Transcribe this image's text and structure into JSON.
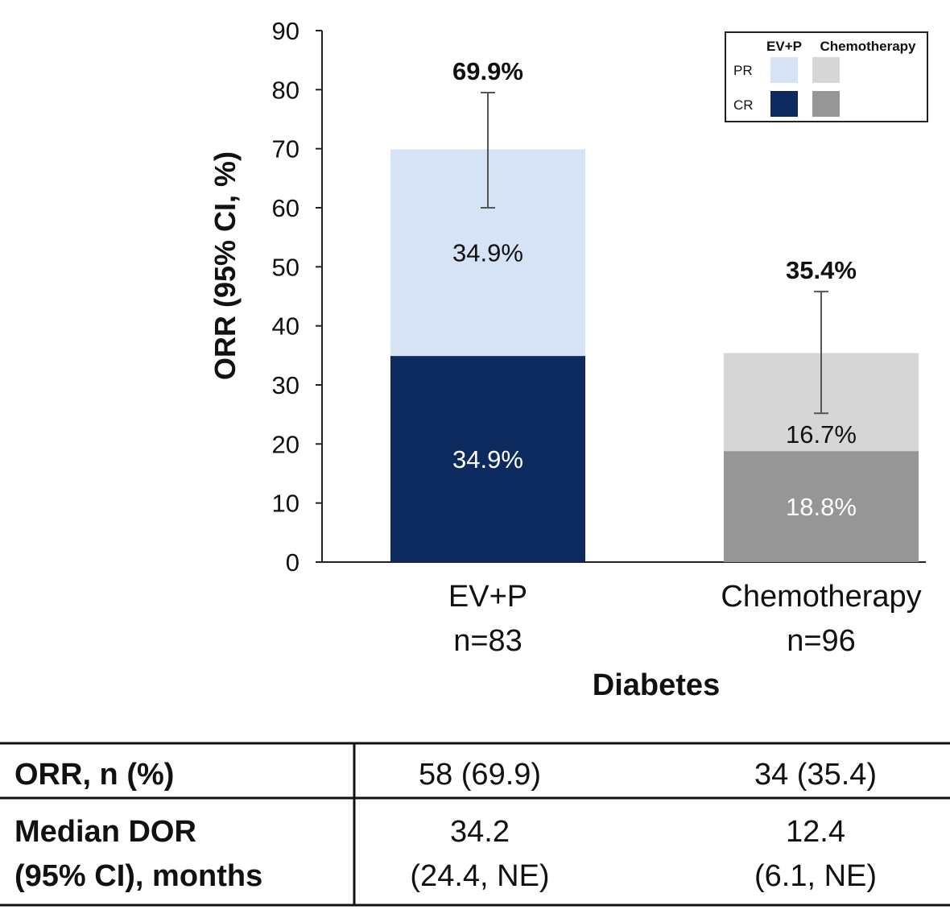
{
  "chart_data": {
    "type": "bar",
    "stacked": true,
    "ylabel": "ORR (95% CI, %)",
    "xlabel": "Diabetes",
    "ylim": [
      0,
      90
    ],
    "yticks": [
      0,
      10,
      20,
      30,
      40,
      50,
      60,
      70,
      80,
      90
    ],
    "grid": false,
    "legend_placement": "top-right",
    "legend": {
      "columns": [
        "EV+P",
        "Chemotherapy"
      ],
      "rows": [
        "PR",
        "CR"
      ]
    },
    "categories": [
      {
        "name": "EV+P",
        "n": "n=83",
        "cr": 34.9,
        "pr": 34.9,
        "total": 69.9,
        "cr_label": "34.9%",
        "pr_label": "34.9%",
        "total_label": "69.9%",
        "ci": [
          60.0,
          79.5
        ],
        "colors": {
          "pr": "#d6e2f5",
          "cr": "#0d2a5e"
        }
      },
      {
        "name": "Chemotherapy",
        "n": "n=96",
        "cr": 18.8,
        "pr": 16.7,
        "total": 35.4,
        "cr_label": "18.8%",
        "pr_label": "16.7%",
        "total_label": "35.4%",
        "ci": [
          25.2,
          45.8
        ],
        "colors": {
          "pr": "#d6d6d6",
          "cr": "#969696"
        }
      }
    ]
  },
  "table": {
    "rows": [
      {
        "label": [
          "ORR, n (%)"
        ],
        "values": [
          [
            "58 (69.9)"
          ],
          [
            "34 (35.4)"
          ]
        ]
      },
      {
        "label": [
          "Median DOR",
          "(95% CI), months"
        ],
        "values": [
          [
            "34.2",
            "(24.4, NE)"
          ],
          [
            "12.4",
            "(6.1, NE)"
          ]
        ]
      }
    ]
  }
}
